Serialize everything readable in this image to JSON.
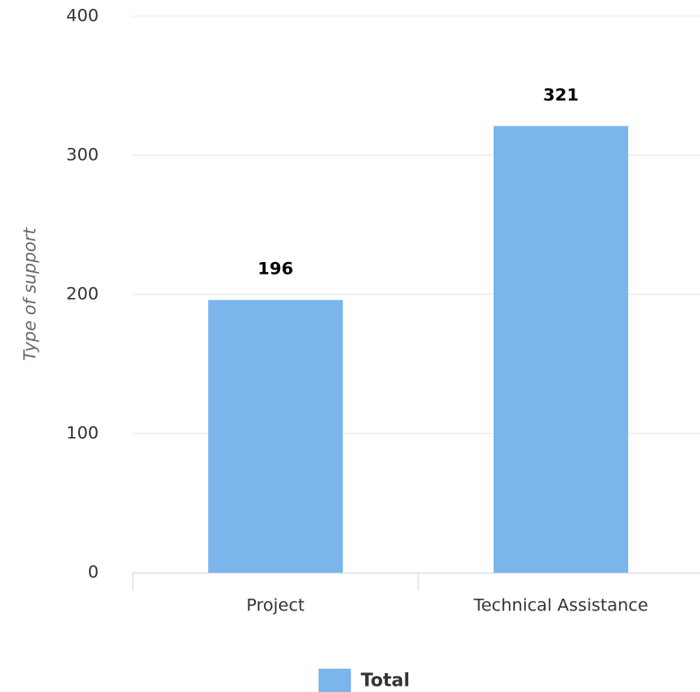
{
  "chart_data": {
    "type": "bar",
    "y_label": "Type of support",
    "categories": [
      "Project",
      "Technical Assistance"
    ],
    "series": [
      {
        "name": "Total",
        "color": "#7cb5ec",
        "values": [
          196,
          321
        ]
      }
    ],
    "ylim": [
      0,
      400
    ],
    "yticks": [
      0,
      100,
      200,
      300,
      400
    ],
    "grid": true
  }
}
